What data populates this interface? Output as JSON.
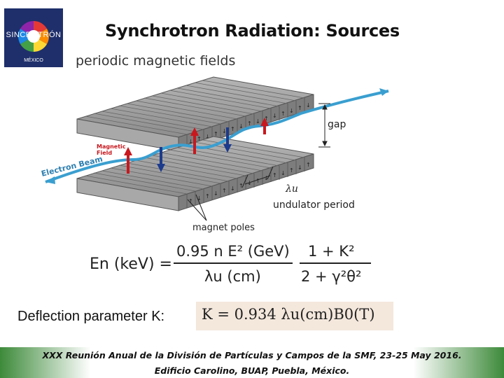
{
  "slide": {
    "title": "Synchrotron Radiation: Sources",
    "subtitle": "periodic magnetic fields"
  },
  "logo": {
    "name": "SINCROTRÓN",
    "country": "MÉXICO"
  },
  "diagram": {
    "labels": {
      "gap": "gap",
      "lambda": "λu",
      "undulator_period": "undulator period",
      "magnet_poles": "magnet poles",
      "electron_beam": "Electron Beam",
      "magnetic_field_line1": "Magnetic",
      "magnetic_field_line2": "Field"
    },
    "colors": {
      "magnet_gray": "#8a8a8a",
      "beam_blue": "#3a9fd0",
      "arrow_red": "#c8181e",
      "arrow_blue": "#1d3b8c"
    }
  },
  "energy_formula": {
    "lhs": "En (keV) =",
    "numerator": "0.95 n E² (GeV)",
    "denominator": "λu (cm)",
    "fraction2_numerator": "1 + K²",
    "fraction2_denominator": "2 + γ²θ²"
  },
  "deflection": {
    "label": "Deflection parameter K:",
    "formula": "K = 0.934 λu(cm)B0(T)"
  },
  "footer": {
    "line1": "XXX Reunión Anual de la División de Partículas y Campos de la SMF, 23-25 May 2016.",
    "line2": "Edificio Carolino, BUAP, Puebla, México."
  }
}
